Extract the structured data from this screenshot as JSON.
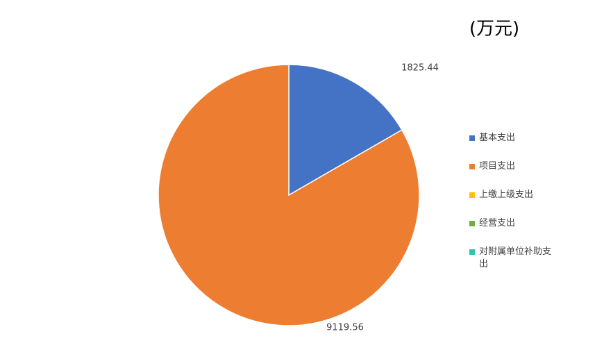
{
  "chart_data": {
    "type": "pie",
    "title": "(万元)",
    "categories": [
      "基本支出",
      "项目支出",
      "上缴上级支出",
      "经营支出",
      "对附属单位补助支出"
    ],
    "values": [
      1825.44,
      9119.56,
      0,
      0,
      0
    ],
    "colors": [
      "#4472c4",
      "#ed7d31",
      "#ffc000",
      "#70ad47",
      "#2ec4b0"
    ],
    "legend": "right"
  }
}
